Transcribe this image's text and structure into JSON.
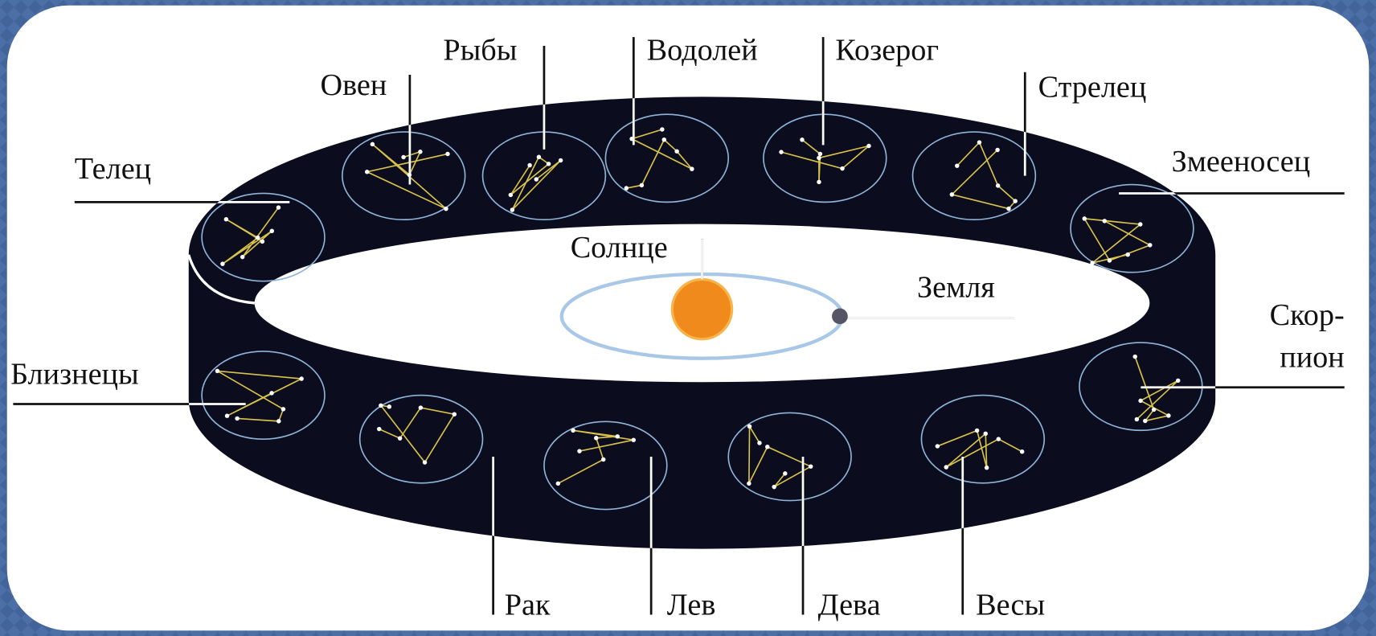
{
  "labels": [
    "Рыбы",
    "Овен",
    "Водолей",
    "Козерог",
    "Стрелец",
    "Телец",
    "Змееносец",
    "Солнце",
    "Земля",
    "Скор-",
    "пион",
    "Близнецы",
    "Рак",
    "Лев",
    "Дева",
    "Весы"
  ]
}
